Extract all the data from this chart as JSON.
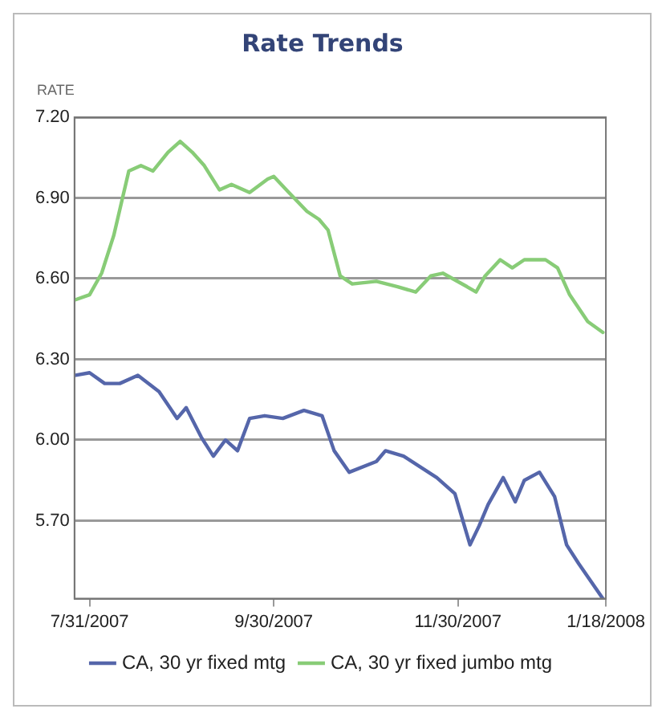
{
  "chart_data": {
    "type": "line",
    "title": "Rate Trends",
    "ylabel": "RATE",
    "xlim": [
      "2007-07-26",
      "2008-01-18"
    ],
    "xticks": [
      {
        "value": "2007-07-31",
        "label": "7/31/2007"
      },
      {
        "value": "2007-09-30",
        "label": "9/30/2007"
      },
      {
        "value": "2007-11-30",
        "label": "11/30/2007"
      },
      {
        "value": "2008-01-18",
        "label": "1/18/2008"
      }
    ],
    "ylim": [
      5.41,
      7.2
    ],
    "yticks": [
      {
        "value": 5.7,
        "label": "5.70"
      },
      {
        "value": 6.0,
        "label": "6.00"
      },
      {
        "value": 6.3,
        "label": "6.30"
      },
      {
        "value": 6.6,
        "label": "6.60"
      },
      {
        "value": 6.9,
        "label": "6.90"
      },
      {
        "value": 7.2,
        "label": "7.20"
      }
    ],
    "grid": "y",
    "legend": "bottom",
    "marker": "none",
    "line_style": "solid",
    "series": [
      {
        "name": "CA, 30 yr fixed mtg",
        "color": "#5566aa",
        "x": [
          "2007-07-26",
          "2007-07-31",
          "2007-08-05",
          "2007-08-10",
          "2007-08-16",
          "2007-08-23",
          "2007-08-29",
          "2007-09-01",
          "2007-09-06",
          "2007-09-10",
          "2007-09-14",
          "2007-09-18",
          "2007-09-22",
          "2007-09-27",
          "2007-10-03",
          "2007-10-10",
          "2007-10-16",
          "2007-10-20",
          "2007-10-25",
          "2007-11-03",
          "2007-11-06",
          "2007-11-12",
          "2007-11-23",
          "2007-11-29",
          "2007-12-04",
          "2007-12-07",
          "2007-12-10",
          "2007-12-15",
          "2007-12-19",
          "2007-12-22",
          "2007-12-27",
          "2008-01-01",
          "2008-01-05",
          "2008-01-09",
          "2008-01-17"
        ],
        "values": [
          6.24,
          6.25,
          6.21,
          6.21,
          6.24,
          6.18,
          6.08,
          6.12,
          6.01,
          5.94,
          6.0,
          5.96,
          6.08,
          6.09,
          6.08,
          6.11,
          6.09,
          5.96,
          5.88,
          5.92,
          5.96,
          5.94,
          5.86,
          5.8,
          5.61,
          5.68,
          5.76,
          5.86,
          5.77,
          5.85,
          5.88,
          5.79,
          5.61,
          5.54,
          5.41
        ]
      },
      {
        "name": "CA, 30 yr fixed jumbo mtg",
        "color": "#88cc77",
        "x": [
          "2007-07-26",
          "2007-07-31",
          "2007-08-04",
          "2007-08-08",
          "2007-08-13",
          "2007-08-17",
          "2007-08-21",
          "2007-08-26",
          "2007-08-30",
          "2007-09-03",
          "2007-09-07",
          "2007-09-12",
          "2007-09-16",
          "2007-09-22",
          "2007-09-28",
          "2007-09-30",
          "2007-10-05",
          "2007-10-11",
          "2007-10-15",
          "2007-10-18",
          "2007-10-22",
          "2007-10-26",
          "2007-11-03",
          "2007-11-10",
          "2007-11-16",
          "2007-11-21",
          "2007-11-25",
          "2007-12-03",
          "2007-12-06",
          "2007-12-09",
          "2007-12-14",
          "2007-12-18",
          "2007-12-22",
          "2007-12-29",
          "2008-01-02",
          "2008-01-06",
          "2008-01-12",
          "2008-01-17"
        ],
        "values": [
          6.52,
          6.54,
          6.62,
          6.76,
          7.0,
          7.02,
          7.0,
          7.07,
          7.11,
          7.07,
          7.02,
          6.93,
          6.95,
          6.92,
          6.97,
          6.98,
          6.92,
          6.85,
          6.82,
          6.78,
          6.61,
          6.58,
          6.59,
          6.57,
          6.55,
          6.61,
          6.62,
          6.57,
          6.55,
          6.61,
          6.67,
          6.64,
          6.67,
          6.67,
          6.64,
          6.54,
          6.44,
          6.4
        ]
      }
    ]
  }
}
